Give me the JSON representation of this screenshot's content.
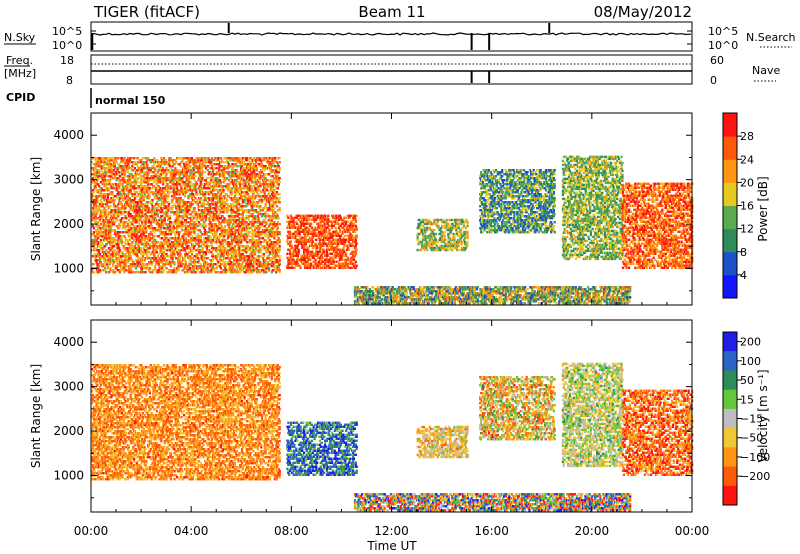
{
  "header": {
    "station": "TIGER (fitACF)",
    "beam": "Beam 11",
    "date": "08/May/2012"
  },
  "noise_panel": {
    "left_label": "N.Sky",
    "right_label": "N.Search",
    "left_ticks": [
      "10^5",
      "10^0"
    ],
    "right_ticks": [
      "10^5",
      "10^0"
    ]
  },
  "freq_panel": {
    "left_label_1": "Freq.",
    "left_label_2": "[MHz]",
    "right_label": "Nave",
    "left_ticks": [
      "18",
      "8"
    ],
    "right_ticks": [
      "60",
      "0"
    ]
  },
  "cpid": {
    "label": "CPID",
    "mode": "normal 150"
  },
  "time_axis": {
    "title": "Time UT",
    "ticks": [
      "00:00",
      "04:00",
      "08:00",
      "12:00",
      "16:00",
      "20:00",
      "00:00"
    ]
  },
  "range_axis": {
    "title": "Slant Range [km]",
    "ticks": [
      "1000",
      "2000",
      "3000",
      "4000"
    ]
  },
  "power_scale": {
    "title": "Power [dB]",
    "labels": [
      "4",
      "8",
      "12",
      "16",
      "20",
      "24",
      "28"
    ],
    "colors": [
      "#1414ff",
      "#1e50c8",
      "#2d8c5a",
      "#5aaa50",
      "#e6c81e",
      "#ff9614",
      "#ff5a0a",
      "#ff1414"
    ]
  },
  "velocity_scale": {
    "title": "Velocity [m s⁻¹]",
    "labels": [
      "200",
      "100",
      "50",
      "15",
      "−15",
      "−50",
      "−100",
      "−200"
    ],
    "colors": [
      "#1e1ee6",
      "#2d64c8",
      "#2d8c5a",
      "#64c83c",
      "#bebebe",
      "#f0c832",
      "#ff9614",
      "#ff5a0a",
      "#ff1414"
    ]
  },
  "chart_data": [
    {
      "type": "heatmap",
      "title": "Power [dB]",
      "xlabel": "Time UT",
      "ylabel": "Slant Range [km]",
      "xlim": [
        "00:00",
        "24:00"
      ],
      "ylim": [
        180,
        4500
      ],
      "zlim": [
        0,
        30
      ],
      "regions": [
        {
          "t": [
            0.0,
            7.5
          ],
          "range_km": [
            900,
            3500
          ],
          "value_db": [
            14,
            30
          ]
        },
        {
          "t": [
            7.8,
            10.6
          ],
          "range_km": [
            1000,
            2200
          ],
          "value_db": [
            20,
            30
          ]
        },
        {
          "t": [
            13.0,
            15.0
          ],
          "range_km": [
            1400,
            2100
          ],
          "value_db": [
            8,
            22
          ]
        },
        {
          "t": [
            15.5,
            18.5
          ],
          "range_km": [
            1800,
            3200
          ],
          "value_db": [
            4,
            18
          ]
        },
        {
          "t": [
            18.8,
            21.2
          ],
          "range_km": [
            1200,
            3500
          ],
          "value_db": [
            8,
            20
          ]
        },
        {
          "t": [
            21.2,
            24.0
          ],
          "range_km": [
            1000,
            2900
          ],
          "value_db": [
            18,
            30
          ]
        },
        {
          "t": [
            10.5,
            21.5
          ],
          "range_km": [
            200,
            600
          ],
          "value_db": [
            4,
            24
          ]
        }
      ]
    },
    {
      "type": "heatmap",
      "title": "Velocity [m s-1]",
      "xlabel": "Time UT",
      "ylabel": "Slant Range [km]",
      "xlim": [
        "00:00",
        "24:00"
      ],
      "ylim": [
        180,
        4500
      ],
      "zlim": [
        -250,
        250
      ],
      "regions": [
        {
          "t": [
            0.0,
            7.5
          ],
          "range_km": [
            900,
            3500
          ],
          "value_ms": [
            -200,
            -50
          ]
        },
        {
          "t": [
            7.8,
            10.6
          ],
          "range_km": [
            1000,
            2200
          ],
          "value_ms": [
            50,
            250
          ]
        },
        {
          "t": [
            13.0,
            15.0
          ],
          "range_km": [
            1400,
            2100
          ],
          "value_ms": [
            -150,
            50
          ]
        },
        {
          "t": [
            15.5,
            18.5
          ],
          "range_km": [
            1800,
            3200
          ],
          "value_ms": [
            -200,
            100
          ]
        },
        {
          "t": [
            18.8,
            21.2
          ],
          "range_km": [
            1200,
            3500
          ],
          "value_ms": [
            -100,
            100
          ]
        },
        {
          "t": [
            21.2,
            24.0
          ],
          "range_km": [
            1000,
            2900
          ],
          "value_ms": [
            -250,
            -50
          ]
        },
        {
          "t": [
            10.5,
            21.5
          ],
          "range_km": [
            200,
            600
          ],
          "value_ms": [
            -250,
            250
          ]
        }
      ]
    }
  ]
}
